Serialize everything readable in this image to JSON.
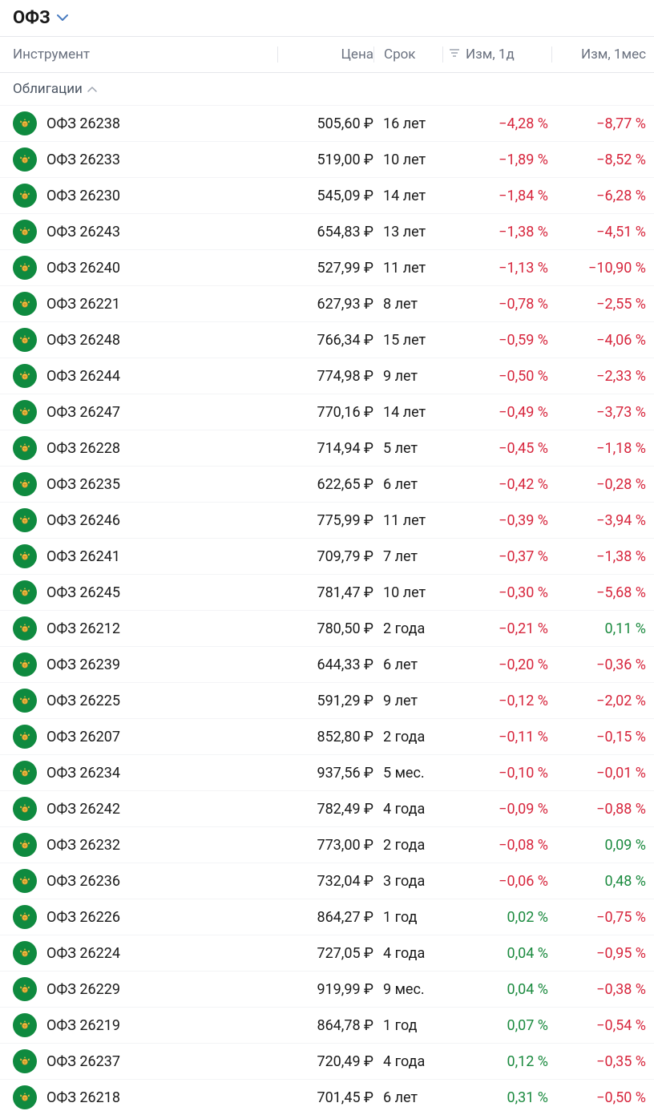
{
  "header": {
    "title": "ОФЗ"
  },
  "columns": {
    "instrument": "Инструмент",
    "price": "Цена",
    "term": "Срок",
    "change_1d": "Изм, 1д",
    "change_1m": "Изм, 1мес"
  },
  "section": {
    "title": "Облигации"
  },
  "colors": {
    "negative": "#d7263d",
    "positive": "#1b8a3f",
    "icon_bg": "#0f8a3f",
    "text_primary": "#1a1a1a",
    "text_secondary": "#6b7280",
    "border": "#e5e7eb"
  },
  "rows": [
    {
      "name": "ОФЗ 26238",
      "price": "505,60 ₽",
      "term": "16 лет",
      "d1": "−4,28 %",
      "d1_sign": "neg",
      "m1": "−8,77 %",
      "m1_sign": "neg"
    },
    {
      "name": "ОФЗ 26233",
      "price": "519,00 ₽",
      "term": "10 лет",
      "d1": "−1,89 %",
      "d1_sign": "neg",
      "m1": "−8,52 %",
      "m1_sign": "neg"
    },
    {
      "name": "ОФЗ 26230",
      "price": "545,09 ₽",
      "term": "14 лет",
      "d1": "−1,84 %",
      "d1_sign": "neg",
      "m1": "−6,28 %",
      "m1_sign": "neg"
    },
    {
      "name": "ОФЗ 26243",
      "price": "654,83 ₽",
      "term": "13 лет",
      "d1": "−1,38 %",
      "d1_sign": "neg",
      "m1": "−4,51 %",
      "m1_sign": "neg"
    },
    {
      "name": "ОФЗ 26240",
      "price": "527,99 ₽",
      "term": "11 лет",
      "d1": "−1,13 %",
      "d1_sign": "neg",
      "m1": "−10,90 %",
      "m1_sign": "neg"
    },
    {
      "name": "ОФЗ 26221",
      "price": "627,93 ₽",
      "term": "8 лет",
      "d1": "−0,78 %",
      "d1_sign": "neg",
      "m1": "−2,55 %",
      "m1_sign": "neg"
    },
    {
      "name": "ОФЗ 26248",
      "price": "766,34 ₽",
      "term": "15 лет",
      "d1": "−0,59 %",
      "d1_sign": "neg",
      "m1": "−4,06 %",
      "m1_sign": "neg"
    },
    {
      "name": "ОФЗ 26244",
      "price": "774,98 ₽",
      "term": "9 лет",
      "d1": "−0,50 %",
      "d1_sign": "neg",
      "m1": "−2,33 %",
      "m1_sign": "neg"
    },
    {
      "name": "ОФЗ 26247",
      "price": "770,16 ₽",
      "term": "14 лет",
      "d1": "−0,49 %",
      "d1_sign": "neg",
      "m1": "−3,73 %",
      "m1_sign": "neg"
    },
    {
      "name": "ОФЗ 26228",
      "price": "714,94 ₽",
      "term": "5 лет",
      "d1": "−0,45 %",
      "d1_sign": "neg",
      "m1": "−1,18 %",
      "m1_sign": "neg"
    },
    {
      "name": "ОФЗ 26235",
      "price": "622,65 ₽",
      "term": "6 лет",
      "d1": "−0,42 %",
      "d1_sign": "neg",
      "m1": "−0,28 %",
      "m1_sign": "neg"
    },
    {
      "name": "ОФЗ 26246",
      "price": "775,99 ₽",
      "term": "11 лет",
      "d1": "−0,39 %",
      "d1_sign": "neg",
      "m1": "−3,94 %",
      "m1_sign": "neg"
    },
    {
      "name": "ОФЗ 26241",
      "price": "709,79 ₽",
      "term": "7 лет",
      "d1": "−0,37 %",
      "d1_sign": "neg",
      "m1": "−1,38 %",
      "m1_sign": "neg"
    },
    {
      "name": "ОФЗ 26245",
      "price": "781,47 ₽",
      "term": "10 лет",
      "d1": "−0,30 %",
      "d1_sign": "neg",
      "m1": "−5,68 %",
      "m1_sign": "neg"
    },
    {
      "name": "ОФЗ 26212",
      "price": "780,50 ₽",
      "term": "2 года",
      "d1": "−0,21 %",
      "d1_sign": "neg",
      "m1": "0,11 %",
      "m1_sign": "pos"
    },
    {
      "name": "ОФЗ 26239",
      "price": "644,33 ₽",
      "term": "6 лет",
      "d1": "−0,20 %",
      "d1_sign": "neg",
      "m1": "−0,36 %",
      "m1_sign": "neg"
    },
    {
      "name": "ОФЗ 26225",
      "price": "591,29 ₽",
      "term": "9 лет",
      "d1": "−0,12 %",
      "d1_sign": "neg",
      "m1": "−2,02 %",
      "m1_sign": "neg"
    },
    {
      "name": "ОФЗ 26207",
      "price": "852,80 ₽",
      "term": "2 года",
      "d1": "−0,11 %",
      "d1_sign": "neg",
      "m1": "−0,15 %",
      "m1_sign": "neg"
    },
    {
      "name": "ОФЗ 26234",
      "price": "937,56 ₽",
      "term": "5 мес.",
      "d1": "−0,10 %",
      "d1_sign": "neg",
      "m1": "−0,01 %",
      "m1_sign": "neg"
    },
    {
      "name": "ОФЗ 26242",
      "price": "782,49 ₽",
      "term": "4 года",
      "d1": "−0,09 %",
      "d1_sign": "neg",
      "m1": "−0,88 %",
      "m1_sign": "neg"
    },
    {
      "name": "ОФЗ 26232",
      "price": "773,00 ₽",
      "term": "2 года",
      "d1": "−0,08 %",
      "d1_sign": "neg",
      "m1": "0,09 %",
      "m1_sign": "pos"
    },
    {
      "name": "ОФЗ 26236",
      "price": "732,04 ₽",
      "term": "3 года",
      "d1": "−0,06 %",
      "d1_sign": "neg",
      "m1": "0,48 %",
      "m1_sign": "pos"
    },
    {
      "name": "ОФЗ 26226",
      "price": "864,27 ₽",
      "term": "1 год",
      "d1": "0,02 %",
      "d1_sign": "pos",
      "m1": "−0,75 %",
      "m1_sign": "neg"
    },
    {
      "name": "ОФЗ 26224",
      "price": "727,05 ₽",
      "term": "4 года",
      "d1": "0,04 %",
      "d1_sign": "pos",
      "m1": "−0,95 %",
      "m1_sign": "neg"
    },
    {
      "name": "ОФЗ 26229",
      "price": "919,99 ₽",
      "term": "9 мес.",
      "d1": "0,04 %",
      "d1_sign": "pos",
      "m1": "−0,38 %",
      "m1_sign": "neg"
    },
    {
      "name": "ОФЗ 26219",
      "price": "864,78 ₽",
      "term": "1 год",
      "d1": "0,07 %",
      "d1_sign": "pos",
      "m1": "−0,54 %",
      "m1_sign": "neg"
    },
    {
      "name": "ОФЗ 26237",
      "price": "720,49 ₽",
      "term": "4 года",
      "d1": "0,12 %",
      "d1_sign": "pos",
      "m1": "−0,35 %",
      "m1_sign": "neg"
    },
    {
      "name": "ОФЗ 26218",
      "price": "701,45 ₽",
      "term": "6 лет",
      "d1": "0,31 %",
      "d1_sign": "pos",
      "m1": "−0,50 %",
      "m1_sign": "neg"
    }
  ]
}
